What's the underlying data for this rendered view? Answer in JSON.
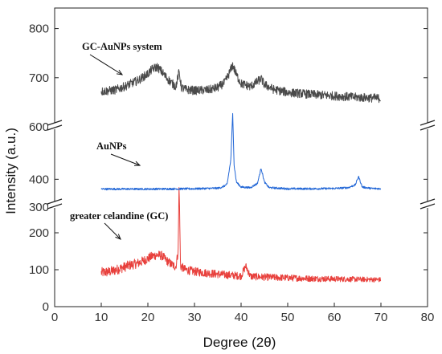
{
  "chart_data": {
    "type": "line",
    "xlabel": "Degree (2θ)",
    "ylabel": "Intensity (a.u.)",
    "xlim": [
      0,
      80
    ],
    "x_ticks": [
      "0",
      "10",
      "20",
      "30",
      "40",
      "50",
      "60",
      "70",
      "80"
    ],
    "y_axis_breaks": true,
    "segments": [
      {
        "ylim": [
          0,
          300
        ],
        "y_ticks": [
          "0",
          "100",
          "200",
          "300"
        ]
      },
      {
        "ylim": [
          300,
          600
        ],
        "y_ticks": [
          "300",
          "400",
          "600"
        ]
      },
      {
        "ylim": [
          600,
          850
        ],
        "y_ticks": [
          "600",
          "700",
          "800"
        ]
      }
    ],
    "grid": false,
    "series": [
      {
        "name": "greater celandine (GC)",
        "color": "#e8403c",
        "segment": 0,
        "x": [
          10,
          12,
          14,
          16,
          18,
          20,
          21,
          22,
          23,
          24,
          25,
          26,
          26.5,
          26.7,
          27,
          28,
          30,
          32,
          35,
          38,
          40,
          41,
          42,
          45,
          50,
          55,
          60,
          65,
          70
        ],
        "y": [
          92,
          95,
          103,
          112,
          118,
          130,
          137,
          140,
          138,
          125,
          115,
          108,
          150,
          340,
          110,
          100,
          95,
          92,
          88,
          85,
          83,
          110,
          82,
          80,
          78,
          76,
          75,
          74,
          73
        ]
      },
      {
        "name": "AuNPs",
        "color": "#2166d6",
        "segment": 1,
        "x": [
          10,
          20,
          30,
          35,
          36,
          37,
          37.8,
          38.2,
          38.5,
          39,
          40,
          42,
          43.5,
          44.3,
          45,
          46,
          50,
          55,
          60,
          63,
          64.5,
          65.2,
          66,
          68,
          70
        ],
        "y": [
          365,
          365,
          366,
          368,
          372,
          382,
          470,
          640,
          450,
          390,
          372,
          370,
          385,
          440,
          390,
          370,
          366,
          366,
          367,
          370,
          380,
          410,
          372,
          367,
          366
        ]
      },
      {
        "name": "GC-AuNPs system",
        "color": "#4a4a4a",
        "segment": 2,
        "x": [
          10,
          13,
          15,
          18,
          20,
          21,
          22,
          23,
          24,
          25,
          26,
          26.7,
          27.2,
          28,
          30,
          33,
          35,
          36.5,
          37.5,
          38.2,
          39,
          40,
          42,
          43.5,
          44.3,
          45,
          47,
          50,
          55,
          60,
          65,
          70
        ],
        "y": [
          672,
          675,
          682,
          695,
          708,
          718,
          722,
          712,
          700,
          690,
          682,
          712,
          680,
          676,
          674,
          675,
          680,
          690,
          710,
          726,
          706,
          688,
          682,
          692,
          698,
          686,
          676,
          670,
          666,
          663,
          660,
          658
        ]
      }
    ],
    "annotations": [
      {
        "text": "GC-AuNPs system",
        "series": "GC-AuNPs system"
      },
      {
        "text": "AuNPs",
        "series": "AuNPs"
      },
      {
        "text": "greater celandine (GC)",
        "series": "greater celandine (GC)"
      }
    ]
  }
}
